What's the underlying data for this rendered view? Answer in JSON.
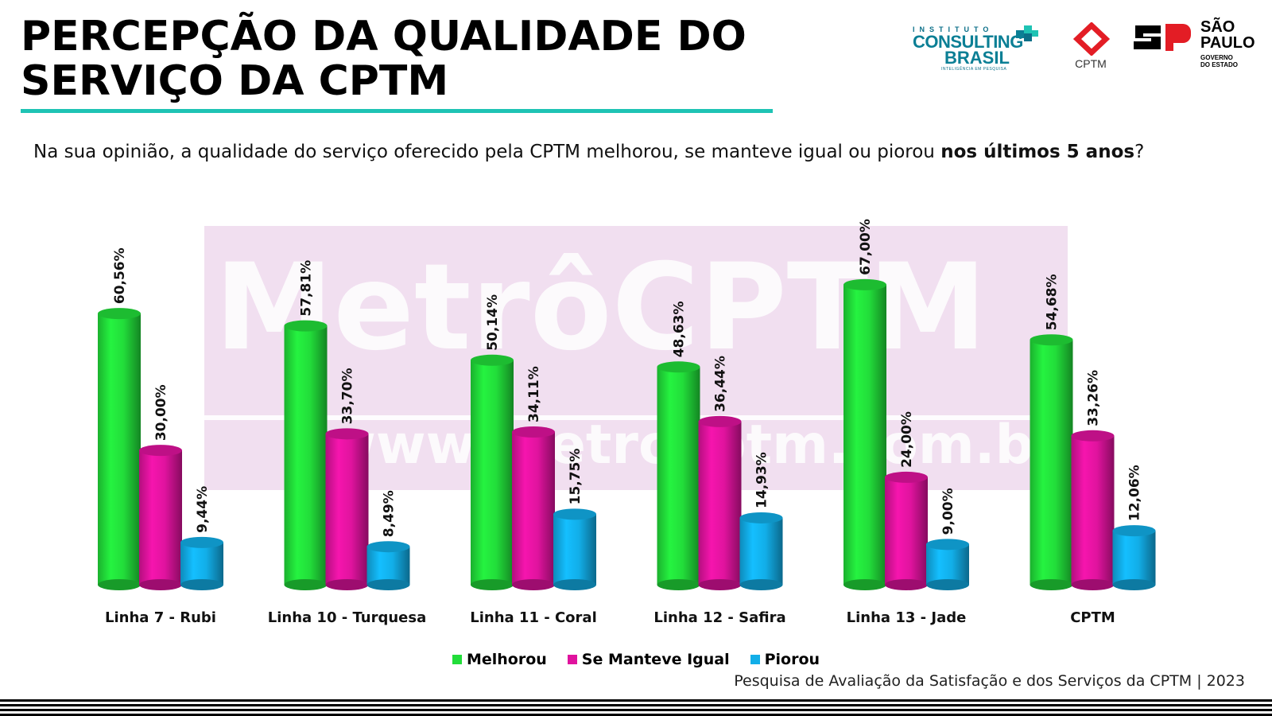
{
  "header": {
    "title_line1": "PERCEPÇÃO DA QUALIDADE DO",
    "title_line2": "SERVIÇO DA CPTM",
    "accent_color": "#1ec3b4"
  },
  "question": {
    "text_before": "Na sua opinião, a qualidade do serviço oferecido pela CPTM  melhorou, se manteve igual ou piorou ",
    "text_bold": "nos últimos 5 anos",
    "text_after": "?"
  },
  "logos": {
    "consulting": {
      "small": "INSTITUTO",
      "line1": "CONSULTING",
      "line2": "BRASIL",
      "tagline": "INTELIGÊNCIA EM PESQUISA",
      "icon": "consulting-logo-mark"
    },
    "cptm": {
      "label": "CPTM",
      "icon": "cptm-diamond-logo"
    },
    "sp": {
      "line1": "SÃO",
      "line2": "PAULO",
      "sub1": "GOVERNO",
      "sub2": "DO ESTADO",
      "icon": "sp-government-logo"
    }
  },
  "watermark": {
    "text": "MetrôCPTM",
    "url": "www.metrocptm.com.br"
  },
  "chart_data": {
    "type": "bar",
    "title": "",
    "xlabel": "",
    "ylabel": "",
    "ylim": [
      0,
      70
    ],
    "grid": false,
    "legend_position": "bottom-center",
    "categories": [
      "Linha 7 - Rubi",
      "Linha 10 - Turquesa",
      "Linha 11 - Coral",
      "Linha 12 - Safira",
      "Linha 13 - Jade",
      "CPTM"
    ],
    "series": [
      {
        "name": "Melhorou",
        "color": "#22dd3a",
        "values": [
          60.56,
          57.81,
          50.14,
          48.63,
          67.0,
          54.68
        ],
        "labels": [
          "60,56%",
          "57,81%",
          "50,14%",
          "48,63%",
          "67,00%",
          "54,68%"
        ]
      },
      {
        "name": "Se Manteve Igual",
        "color": "#e0139e",
        "values": [
          30.0,
          33.7,
          34.11,
          36.44,
          24.0,
          33.26
        ],
        "labels": [
          "30,00%",
          "33,70%",
          "34,11%",
          "36,44%",
          "24,00%",
          "33,26%"
        ]
      },
      {
        "name": "Piorou",
        "color": "#12aee8",
        "values": [
          9.44,
          8.49,
          15.75,
          14.93,
          9.0,
          12.06
        ],
        "labels": [
          "9,44%",
          "8,49%",
          "15,75%",
          "14,93%",
          "9,00%",
          "12,06%"
        ]
      }
    ]
  },
  "footer": {
    "source": "Pesquisa de Avaliação da Satisfação e dos Serviços da CPTM | 2023"
  }
}
